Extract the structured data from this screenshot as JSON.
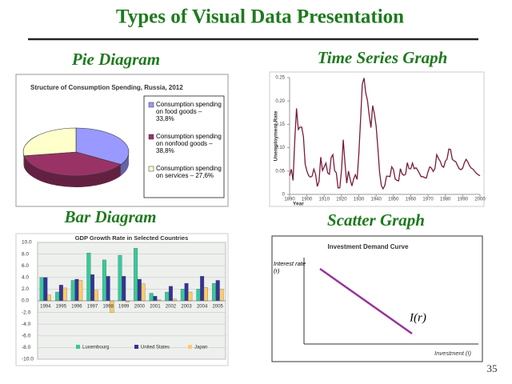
{
  "slide": {
    "title": "Types of Visual Data Presentation",
    "headings": [
      "Pie Diagram",
      "Time Series Graph",
      "Bar Diagram",
      "Scatter Graph"
    ],
    "page_number": "35"
  },
  "chart_data": [
    {
      "type": "pie",
      "title": "Structure of Consumption Spending, Russia, 2012",
      "categories": [
        "Consumption spending on food goods – 33,8%",
        "Consumption spending on nonfood goods – 38,8%",
        "Consumption spending on services – 27,6%"
      ],
      "values": [
        33.8,
        38.8,
        27.6
      ],
      "colors": [
        "#9999ff",
        "#993366",
        "#ffffcc"
      ]
    },
    {
      "type": "line",
      "xlabel": "Year",
      "ylabel": "Unemployment Rate",
      "x": [
        1890,
        1891,
        1892,
        1893,
        1894,
        1895,
        1896,
        1897,
        1898,
        1899,
        1900,
        1901,
        1902,
        1903,
        1904,
        1905,
        1906,
        1907,
        1908,
        1909,
        1910,
        1911,
        1912,
        1913,
        1914,
        1915,
        1916,
        1917,
        1918,
        1919,
        1920,
        1921,
        1922,
        1923,
        1924,
        1925,
        1926,
        1927,
        1928,
        1929,
        1930,
        1931,
        1932,
        1933,
        1934,
        1935,
        1936,
        1937,
        1938,
        1939,
        1940,
        1941,
        1942,
        1943,
        1944,
        1945,
        1946,
        1947,
        1948,
        1949,
        1950,
        1951,
        1952,
        1953,
        1954,
        1955,
        1956,
        1957,
        1958,
        1959,
        1960,
        1961,
        1962,
        1963,
        1964,
        1965,
        1966,
        1967,
        1968,
        1969,
        1970,
        1971,
        1972,
        1973,
        1974,
        1975,
        1976,
        1977,
        1978,
        1979,
        1980,
        1981,
        1982,
        1983,
        1984,
        1985,
        1986,
        1987,
        1988,
        1989,
        1990,
        1991,
        1992,
        1993,
        1994,
        1995,
        1996,
        1997,
        1998,
        1999,
        2000
      ],
      "series": [
        {
          "name": "Unemployment Rate",
          "color": "#7a1a3a",
          "values": [
            0.04,
            0.054,
            0.03,
            0.117,
            0.184,
            0.139,
            0.144,
            0.144,
            0.123,
            0.065,
            0.05,
            0.04,
            0.037,
            0.039,
            0.054,
            0.043,
            0.017,
            0.028,
            0.08,
            0.051,
            0.059,
            0.067,
            0.046,
            0.043,
            0.079,
            0.085,
            0.051,
            0.046,
            0.014,
            0.014,
            0.052,
            0.117,
            0.067,
            0.024,
            0.05,
            0.032,
            0.018,
            0.033,
            0.042,
            0.032,
            0.087,
            0.159,
            0.236,
            0.249,
            0.217,
            0.201,
            0.169,
            0.143,
            0.19,
            0.172,
            0.146,
            0.099,
            0.047,
            0.019,
            0.012,
            0.019,
            0.039,
            0.039,
            0.038,
            0.059,
            0.053,
            0.033,
            0.03,
            0.029,
            0.055,
            0.044,
            0.041,
            0.043,
            0.068,
            0.055,
            0.055,
            0.067,
            0.055,
            0.057,
            0.052,
            0.045,
            0.038,
            0.038,
            0.036,
            0.035,
            0.049,
            0.059,
            0.056,
            0.049,
            0.056,
            0.085,
            0.077,
            0.071,
            0.061,
            0.058,
            0.071,
            0.076,
            0.097,
            0.096,
            0.075,
            0.072,
            0.07,
            0.062,
            0.055,
            0.053,
            0.056,
            0.068,
            0.075,
            0.069,
            0.061,
            0.056,
            0.054,
            0.049,
            0.045,
            0.042,
            0.04
          ]
        }
      ],
      "xlim": [
        1890,
        2000
      ],
      "xticks": [
        1890,
        1900,
        1910,
        1920,
        1930,
        1940,
        1950,
        1960,
        1970,
        1980,
        1990,
        2000
      ],
      "ylim": [
        0,
        0.25
      ],
      "yticks": [
        0,
        0.05,
        {
          "value": 0.1,
          "label": "0.10"
        },
        0.15,
        {
          "value": 0.2,
          "label": "0.20"
        },
        0.25
      ]
    },
    {
      "type": "bar",
      "title": "GDP Growth Rate in Selected Countries",
      "categories": [
        "1994",
        "1995",
        "1996",
        "1997",
        "1998",
        "1999",
        "2000",
        "2001",
        "2002",
        "2003",
        "2004",
        "2005"
      ],
      "series": [
        {
          "name": "Luxembourg",
          "color": "#33cc99",
          "values": [
            4.0,
            1.5,
            3.5,
            8.2,
            7.0,
            7.8,
            9.0,
            1.3,
            1.5,
            2.0,
            2.0,
            3.0
          ]
        },
        {
          "name": "United States",
          "color": "#333399",
          "values": [
            4.0,
            2.7,
            3.7,
            4.5,
            4.2,
            4.2,
            3.7,
            0.8,
            2.5,
            3.0,
            4.2,
            3.5
          ]
        },
        {
          "name": "Japan",
          "color": "#ffcc66",
          "values": [
            1.0,
            2.2,
            3.5,
            1.8,
            -2.0,
            -0.2,
            2.9,
            0.2,
            0.3,
            1.5,
            2.3,
            2.0
          ]
        }
      ],
      "ylim": [
        -10,
        10
      ],
      "yticks": [
        {
          "value": -10,
          "label": "-10.0"
        },
        {
          "value": -8,
          "label": "-8.0"
        },
        {
          "value": -6,
          "label": "-6.0"
        },
        {
          "value": -4,
          "label": "-4.0"
        },
        {
          "value": -2,
          "label": "-2.0"
        },
        {
          "value": 0,
          "label": "0.0"
        },
        {
          "value": 2,
          "label": "2.0"
        },
        {
          "value": 4,
          "label": "4.0"
        },
        {
          "value": 6,
          "label": "6.0"
        },
        {
          "value": 8,
          "label": "8.0"
        },
        {
          "value": 10,
          "label": "10.0"
        }
      ],
      "grid": true
    },
    {
      "type": "curve",
      "title": "Investment Demand Curve",
      "ylabel": "Interest rate (r)",
      "xlabel": "Investment (I)",
      "annotation": "I(r)",
      "color": "#993399"
    }
  ]
}
